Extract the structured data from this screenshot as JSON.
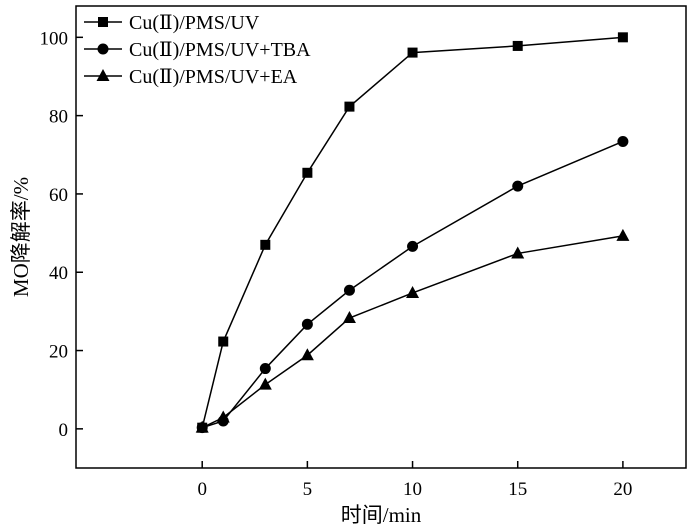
{
  "chart_data": {
    "type": "line",
    "xlabel": "时间/min",
    "ylabel": "MO降解率/%",
    "xlim": [
      -6,
      23
    ],
    "ylim": [
      -10,
      108
    ],
    "x_ticks": [
      0,
      5,
      10,
      15,
      20
    ],
    "y_ticks": [
      0,
      20,
      40,
      60,
      80,
      100
    ],
    "grid": false,
    "legend_position": "top-left",
    "series": [
      {
        "name": "Cu(Ⅱ)/PMS/UV",
        "marker": "square",
        "x": [
          0,
          1,
          3,
          5,
          7,
          10,
          15,
          20
        ],
        "y": [
          0.3,
          22.3,
          47,
          65.4,
          82.3,
          96.1,
          97.8,
          100
        ]
      },
      {
        "name": "Cu(Ⅱ)/PMS/UV+TBA",
        "marker": "circle",
        "x": [
          0,
          1,
          3,
          5,
          7,
          10,
          15,
          20
        ],
        "y": [
          0.3,
          2,
          15.4,
          26.7,
          35.4,
          46.6,
          62,
          73.4
        ]
      },
      {
        "name": "Cu(Ⅱ)/PMS/UV+EA",
        "marker": "triangle",
        "x": [
          0,
          1,
          3,
          5,
          7,
          10,
          15,
          20
        ],
        "y": [
          0.3,
          2.9,
          11.3,
          18.8,
          28.3,
          34.7,
          44.8,
          49.3
        ]
      }
    ]
  }
}
